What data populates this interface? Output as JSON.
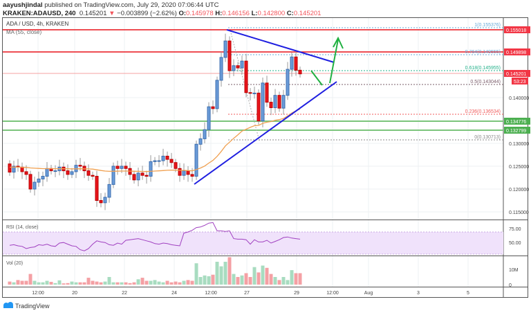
{
  "header": {
    "author": "aayushjindal",
    "published": "published on TradingView.com, July 29, 2020 07:06:44 UTC",
    "symbol": "KRAKEN:ADAUSD, 240",
    "last": "0.145201",
    "change": "−0.003899 (−2.62%)",
    "o_label": "O:",
    "o": "0.145978",
    "h_label": "H:",
    "h": "0.146156",
    "l_label": "L:",
    "l": "0.142800",
    "c_label": "C:",
    "c": "0.145201"
  },
  "pane": {
    "title": "ADA / USD, 4h, KRAKEN",
    "ma_label": "MA (55, close)",
    "rsi_label": "RSI (14, close)",
    "vol_label": "Vol (20)"
  },
  "price_axis": [
    "0.140000",
    "0.130000",
    "0.125000",
    "0.120000",
    "0.115000"
  ],
  "price_tags": [
    {
      "text": "0.155018",
      "color": "#f23645"
    },
    {
      "text": "0.149898",
      "color": "#f23645"
    },
    {
      "text": "0.145201",
      "color": "#f23645"
    },
    {
      "text": "53:23",
      "color": "#f23645"
    },
    {
      "text": "0.134776",
      "color": "#4caf50"
    },
    {
      "text": "0.132799",
      "color": "#4caf50"
    }
  ],
  "fib": [
    {
      "text": "1(0.155376)",
      "color": "#64a8d8"
    },
    {
      "text": "0.764(0.149555)",
      "color": "#64a8d8"
    },
    {
      "text": "0.618(0.145955)",
      "color": "#22b08a"
    },
    {
      "text": "0.5(0.143044)",
      "color": "#7a5c6a"
    },
    {
      "text": "0.236(0.136534)",
      "color": "#f05a5a"
    },
    {
      "text": "0(0.130713)",
      "color": "#888888"
    }
  ],
  "rsi_axis": [
    "75.00",
    "50.00"
  ],
  "vol_axis": [
    "10M",
    "0"
  ],
  "time_axis": [
    "12:00",
    "20",
    "22",
    "24",
    "12:00",
    "27",
    "29",
    "12:00",
    "Aug",
    "3",
    "5"
  ],
  "footer": {
    "brand": "TradingView"
  },
  "colors": {
    "up": "#6a9bd8",
    "down": "#e8141c",
    "ma": "#f0a050",
    "trend": "#1f1fe0",
    "arrow": "#1fb040"
  },
  "chart_data": {
    "type": "candlestick",
    "open_first": 0.1255,
    "closes": [
      0.1237,
      0.125,
      0.1248,
      0.1238,
      0.1232,
      0.12,
      0.1215,
      0.1222,
      0.1228,
      0.1245,
      0.124,
      0.124,
      0.1248,
      0.124,
      0.1232,
      0.1238,
      0.1252,
      0.125,
      0.124,
      0.123,
      0.1228,
      0.1175,
      0.117,
      0.1182,
      0.121,
      0.125,
      0.1245,
      0.125,
      0.1245,
      0.1232,
      0.122,
      0.1235,
      0.123,
      0.1228,
      0.126,
      0.1262,
      0.1262,
      0.1272,
      0.1265,
      0.1258,
      0.1245,
      0.123,
      0.124,
      0.1232,
      0.1228,
      0.1298,
      0.131,
      0.133,
      0.138,
      0.1376,
      0.1438,
      0.1488,
      0.1524,
      0.1459,
      0.147,
      0.1465,
      0.148,
      0.1411,
      0.141,
      0.141,
      0.1349,
      0.1432,
      0.139,
      0.1378,
      0.1405,
      0.1377,
      0.1405,
      0.1462,
      0.1489,
      0.146,
      0.1452
    ],
    "rsi": [
      46,
      47,
      45,
      44,
      40,
      42,
      43,
      47,
      46,
      48,
      45,
      44,
      50,
      51,
      48,
      45,
      44,
      38,
      36,
      40,
      48,
      54,
      52,
      51,
      47,
      46,
      50,
      48,
      55,
      56,
      57,
      58,
      56,
      54,
      52,
      49,
      48,
      50,
      49,
      47,
      46,
      45,
      68,
      70,
      73,
      78,
      79,
      82,
      86,
      87,
      72,
      72,
      71,
      72,
      58,
      57,
      57,
      56,
      48,
      56,
      52,
      52,
      55,
      50,
      53,
      56,
      60,
      61,
      59,
      58,
      57
    ],
    "volume": [
      2,
      1.5,
      3,
      2.5,
      2.5,
      7,
      2.5,
      1.5,
      1.5,
      2.5,
      1.8,
      1,
      2.8,
      0.8,
      1,
      2,
      1.5,
      1.5,
      1.5,
      4.5,
      2.5,
      2,
      1.5,
      2,
      5,
      1.5,
      1.5,
      1.5,
      1.5,
      1,
      1.5,
      3.5,
      4.5,
      2.5,
      2.5,
      3,
      2,
      1.5,
      2.5,
      1.5,
      2,
      1.5,
      2.5,
      3,
      2.5,
      14,
      5,
      6,
      5.5,
      6.5,
      15,
      12,
      15,
      18,
      7,
      5,
      6,
      7.5,
      5,
      11.5,
      8,
      12.5,
      11,
      7,
      5,
      3,
      5,
      3,
      9.5,
      7.5,
      7.5
    ],
    "ylim": [
      0.112,
      0.1565
    ],
    "ma_period": 55
  }
}
